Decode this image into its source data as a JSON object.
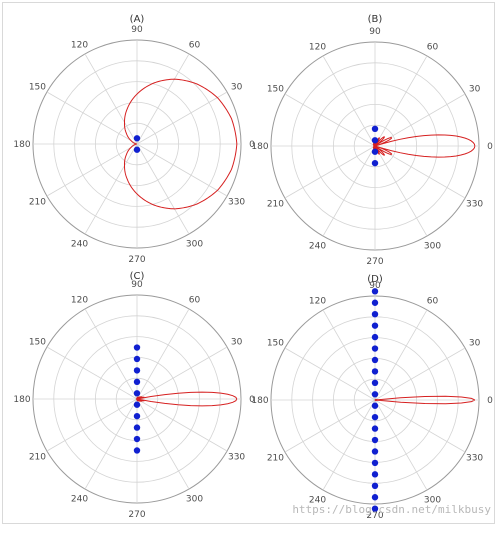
{
  "watermark": "https://blog.csdn.net/milkbusy",
  "colors": {
    "pattern": "#d62020",
    "element": "#1020d0",
    "grid": "#d4d4d4",
    "outer_ring": "#9a9a9a",
    "text": "#333333"
  },
  "chart_data": [
    {
      "type": "polar",
      "title": "(A)",
      "angle_ticks": [
        "0",
        "30",
        "60",
        "90",
        "120",
        "150",
        "180",
        "210",
        "240",
        "270",
        "300",
        "330"
      ],
      "rlim": [
        0,
        1
      ],
      "grid": true,
      "pattern_shape": "cardioid",
      "main_lobe_direction_deg": 0,
      "element_count": 2,
      "element_spacing": 0.055,
      "pattern": {
        "angle_deg": [
          0,
          15,
          30,
          45,
          60,
          75,
          90,
          105,
          120,
          135,
          150,
          165,
          180
        ],
        "r": [
          1.0,
          0.98,
          0.93,
          0.85,
          0.75,
          0.63,
          0.5,
          0.37,
          0.25,
          0.15,
          0.07,
          0.02,
          0.0
        ]
      }
    },
    {
      "type": "polar",
      "title": "(B)",
      "angle_ticks": [
        "0",
        "30",
        "60",
        "90",
        "120",
        "150",
        "180",
        "210",
        "240",
        "270",
        "300",
        "330"
      ],
      "rlim": [
        0,
        1
      ],
      "grid": true,
      "pattern_shape": "end-fire",
      "main_lobe_direction_deg": 0,
      "main_lobe_half_width_deg": 18,
      "side_lobe_level": 0.22,
      "element_count": 4,
      "element_spacing": 0.055
    },
    {
      "type": "polar",
      "title": "(C)",
      "angle_ticks": [
        "0",
        "30",
        "60",
        "90",
        "120",
        "150",
        "180",
        "210",
        "240",
        "270",
        "300",
        "330"
      ],
      "rlim": [
        0,
        1
      ],
      "grid": true,
      "pattern_shape": "end-fire",
      "main_lobe_direction_deg": 0,
      "main_lobe_half_width_deg": 11,
      "side_lobe_level": 0.08,
      "element_count": 10,
      "element_spacing": 0.055
    },
    {
      "type": "polar",
      "title": "(D)",
      "angle_ticks": [
        "0",
        "30",
        "60",
        "90",
        "120",
        "150",
        "180",
        "210",
        "240",
        "270",
        "300",
        "330"
      ],
      "rlim": [
        0,
        1
      ],
      "grid": true,
      "pattern_shape": "end-fire",
      "main_lobe_direction_deg": 0,
      "main_lobe_half_width_deg": 6,
      "side_lobe_level": 0.03,
      "element_count": 20,
      "element_spacing": 0.055
    }
  ]
}
